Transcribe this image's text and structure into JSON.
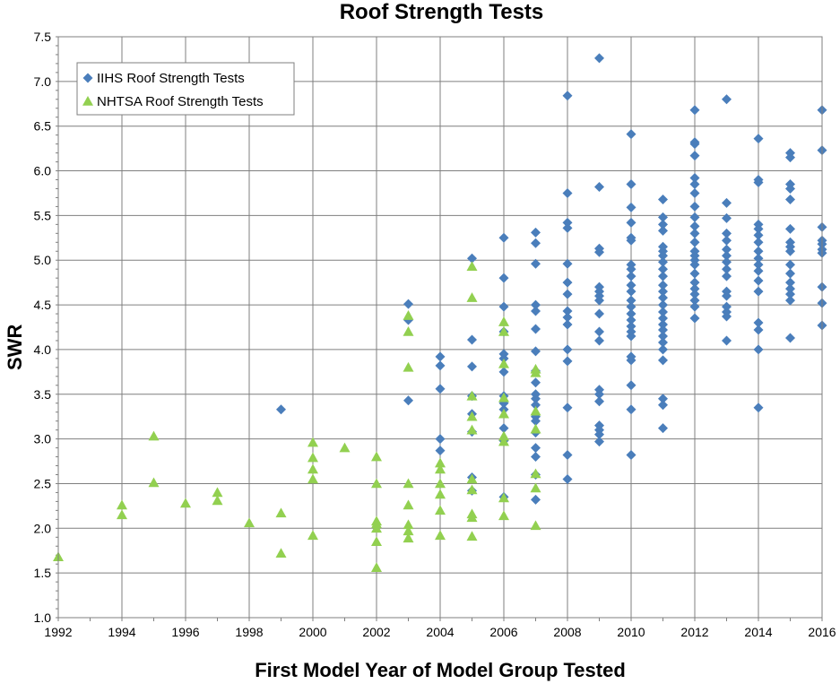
{
  "chart_data": {
    "type": "scatter",
    "title": "Roof Strength Tests",
    "xlabel": "First Model Year of Model Group Tested",
    "ylabel": "SWR",
    "xlim": [
      1992,
      2016
    ],
    "ylim": [
      1.0,
      7.5
    ],
    "xticks": [
      1992,
      1994,
      1996,
      1998,
      2000,
      2002,
      2004,
      2006,
      2008,
      2010,
      2012,
      2014,
      2016
    ],
    "xtick_labels": [
      "1992",
      "1994",
      "1996",
      "1998",
      "2000",
      "2002",
      "2004",
      "2006",
      "2008",
      "2010",
      "2012",
      "2014",
      "2016"
    ],
    "yticks": [
      1.0,
      1.5,
      2.0,
      2.5,
      3.0,
      3.5,
      4.0,
      4.5,
      5.0,
      5.5,
      6.0,
      6.5,
      7.0,
      7.5
    ],
    "ytick_labels": [
      "1.0",
      "1.5",
      "2.0",
      "2.5",
      "3.0",
      "3.5",
      "4.0",
      "4.5",
      "5.0",
      "5.5",
      "6.0",
      "6.5",
      "7.0",
      "7.5"
    ],
    "grid": true,
    "legend_position": "top-left",
    "series": [
      {
        "name": "IIHS Roof Strength Tests",
        "marker": "diamond",
        "color": "#4a7ebb",
        "points": [
          [
            1999,
            3.33
          ],
          [
            2003,
            4.51
          ],
          [
            2003,
            4.33
          ],
          [
            2003,
            3.43
          ],
          [
            2004,
            3.92
          ],
          [
            2004,
            3.82
          ],
          [
            2004,
            3.56
          ],
          [
            2004,
            3.0
          ],
          [
            2004,
            2.87
          ],
          [
            2005,
            5.02
          ],
          [
            2005,
            4.11
          ],
          [
            2005,
            3.81
          ],
          [
            2005,
            3.48
          ],
          [
            2005,
            3.28
          ],
          [
            2005,
            3.08
          ],
          [
            2005,
            2.57
          ],
          [
            2005,
            2.42
          ],
          [
            2006,
            5.25
          ],
          [
            2006,
            4.8
          ],
          [
            2006,
            4.48
          ],
          [
            2006,
            4.2
          ],
          [
            2006,
            3.95
          ],
          [
            2006,
            3.9
          ],
          [
            2006,
            3.75
          ],
          [
            2006,
            3.48
          ],
          [
            2006,
            3.4
          ],
          [
            2006,
            3.33
          ],
          [
            2006,
            3.12
          ],
          [
            2006,
            2.98
          ],
          [
            2006,
            2.35
          ],
          [
            2007,
            5.31
          ],
          [
            2007,
            5.19
          ],
          [
            2007,
            4.96
          ],
          [
            2007,
            4.5
          ],
          [
            2007,
            4.43
          ],
          [
            2007,
            4.23
          ],
          [
            2007,
            3.98
          ],
          [
            2007,
            3.76
          ],
          [
            2007,
            3.63
          ],
          [
            2007,
            3.5
          ],
          [
            2007,
            3.45
          ],
          [
            2007,
            3.38
          ],
          [
            2007,
            3.25
          ],
          [
            2007,
            3.2
          ],
          [
            2007,
            3.07
          ],
          [
            2007,
            2.9
          ],
          [
            2007,
            2.8
          ],
          [
            2007,
            2.6
          ],
          [
            2007,
            2.32
          ],
          [
            2008,
            6.84
          ],
          [
            2008,
            5.75
          ],
          [
            2008,
            5.42
          ],
          [
            2008,
            5.36
          ],
          [
            2008,
            4.96
          ],
          [
            2008,
            4.75
          ],
          [
            2008,
            4.62
          ],
          [
            2008,
            4.43
          ],
          [
            2008,
            4.36
          ],
          [
            2008,
            4.28
          ],
          [
            2008,
            4.0
          ],
          [
            2008,
            3.87
          ],
          [
            2008,
            3.35
          ],
          [
            2008,
            2.82
          ],
          [
            2008,
            2.55
          ],
          [
            2009,
            7.26
          ],
          [
            2009,
            5.82
          ],
          [
            2009,
            5.13
          ],
          [
            2009,
            5.09
          ],
          [
            2009,
            4.7
          ],
          [
            2009,
            4.65
          ],
          [
            2009,
            4.6
          ],
          [
            2009,
            4.55
          ],
          [
            2009,
            4.4
          ],
          [
            2009,
            4.2
          ],
          [
            2009,
            4.1
          ],
          [
            2009,
            3.55
          ],
          [
            2009,
            3.5
          ],
          [
            2009,
            3.42
          ],
          [
            2009,
            3.15
          ],
          [
            2009,
            3.1
          ],
          [
            2009,
            3.05
          ],
          [
            2009,
            2.97
          ],
          [
            2010,
            6.41
          ],
          [
            2010,
            5.85
          ],
          [
            2010,
            5.59
          ],
          [
            2010,
            5.42
          ],
          [
            2010,
            5.25
          ],
          [
            2010,
            5.22
          ],
          [
            2010,
            4.95
          ],
          [
            2010,
            4.9
          ],
          [
            2010,
            4.82
          ],
          [
            2010,
            4.72
          ],
          [
            2010,
            4.65
          ],
          [
            2010,
            4.55
          ],
          [
            2010,
            4.48
          ],
          [
            2010,
            4.4
          ],
          [
            2010,
            4.33
          ],
          [
            2010,
            4.26
          ],
          [
            2010,
            4.2
          ],
          [
            2010,
            4.15
          ],
          [
            2010,
            3.92
          ],
          [
            2010,
            3.88
          ],
          [
            2010,
            3.6
          ],
          [
            2010,
            3.33
          ],
          [
            2010,
            2.82
          ],
          [
            2011,
            5.68
          ],
          [
            2011,
            5.48
          ],
          [
            2011,
            5.4
          ],
          [
            2011,
            5.33
          ],
          [
            2011,
            5.15
          ],
          [
            2011,
            5.1
          ],
          [
            2011,
            5.05
          ],
          [
            2011,
            4.98
          ],
          [
            2011,
            4.9
          ],
          [
            2011,
            4.82
          ],
          [
            2011,
            4.72
          ],
          [
            2011,
            4.65
          ],
          [
            2011,
            4.58
          ],
          [
            2011,
            4.5
          ],
          [
            2011,
            4.42
          ],
          [
            2011,
            4.35
          ],
          [
            2011,
            4.28
          ],
          [
            2011,
            4.22
          ],
          [
            2011,
            4.15
          ],
          [
            2011,
            4.08
          ],
          [
            2011,
            4.0
          ],
          [
            2011,
            3.88
          ],
          [
            2011,
            3.45
          ],
          [
            2011,
            3.38
          ],
          [
            2011,
            3.12
          ],
          [
            2012,
            6.68
          ],
          [
            2012,
            6.32
          ],
          [
            2012,
            6.3
          ],
          [
            2012,
            6.17
          ],
          [
            2012,
            5.92
          ],
          [
            2012,
            5.85
          ],
          [
            2012,
            5.75
          ],
          [
            2012,
            5.6
          ],
          [
            2012,
            5.48
          ],
          [
            2012,
            5.38
          ],
          [
            2012,
            5.3
          ],
          [
            2012,
            5.2
          ],
          [
            2012,
            5.1
          ],
          [
            2012,
            5.05
          ],
          [
            2012,
            5.0
          ],
          [
            2012,
            4.95
          ],
          [
            2012,
            4.85
          ],
          [
            2012,
            4.75
          ],
          [
            2012,
            4.68
          ],
          [
            2012,
            4.62
          ],
          [
            2012,
            4.55
          ],
          [
            2012,
            4.48
          ],
          [
            2012,
            4.35
          ],
          [
            2013,
            6.8
          ],
          [
            2013,
            5.64
          ],
          [
            2013,
            5.47
          ],
          [
            2013,
            5.3
          ],
          [
            2013,
            5.22
          ],
          [
            2013,
            5.12
          ],
          [
            2013,
            5.05
          ],
          [
            2013,
            4.98
          ],
          [
            2013,
            4.9
          ],
          [
            2013,
            4.82
          ],
          [
            2013,
            4.65
          ],
          [
            2013,
            4.6
          ],
          [
            2013,
            4.48
          ],
          [
            2013,
            4.42
          ],
          [
            2013,
            4.37
          ],
          [
            2013,
            4.1
          ],
          [
            2014,
            6.36
          ],
          [
            2014,
            5.9
          ],
          [
            2014,
            5.87
          ],
          [
            2014,
            5.4
          ],
          [
            2014,
            5.35
          ],
          [
            2014,
            5.28
          ],
          [
            2014,
            5.2
          ],
          [
            2014,
            5.1
          ],
          [
            2014,
            5.02
          ],
          [
            2014,
            4.95
          ],
          [
            2014,
            4.88
          ],
          [
            2014,
            4.77
          ],
          [
            2014,
            4.65
          ],
          [
            2014,
            4.3
          ],
          [
            2014,
            4.22
          ],
          [
            2014,
            4.0
          ],
          [
            2014,
            3.35
          ],
          [
            2015,
            6.2
          ],
          [
            2015,
            6.15
          ],
          [
            2015,
            5.85
          ],
          [
            2015,
            5.8
          ],
          [
            2015,
            5.68
          ],
          [
            2015,
            5.35
          ],
          [
            2015,
            5.2
          ],
          [
            2015,
            5.15
          ],
          [
            2015,
            5.1
          ],
          [
            2015,
            4.95
          ],
          [
            2015,
            4.85
          ],
          [
            2015,
            4.75
          ],
          [
            2015,
            4.68
          ],
          [
            2015,
            4.62
          ],
          [
            2015,
            4.55
          ],
          [
            2015,
            4.13
          ],
          [
            2016,
            6.68
          ],
          [
            2016,
            6.23
          ],
          [
            2016,
            5.37
          ],
          [
            2016,
            5.22
          ],
          [
            2016,
            5.18
          ],
          [
            2016,
            5.12
          ],
          [
            2016,
            5.08
          ],
          [
            2016,
            4.7
          ],
          [
            2016,
            4.52
          ],
          [
            2016,
            4.27
          ]
        ]
      },
      {
        "name": "NHTSA Roof Strength Tests",
        "marker": "triangle",
        "color": "#92d050",
        "points": [
          [
            1992,
            1.68
          ],
          [
            1994,
            2.26
          ],
          [
            1994,
            2.15
          ],
          [
            1995,
            3.03
          ],
          [
            1995,
            2.51
          ],
          [
            1996,
            2.28
          ],
          [
            1997,
            2.4
          ],
          [
            1997,
            2.31
          ],
          [
            1998,
            2.06
          ],
          [
            1999,
            2.17
          ],
          [
            1999,
            1.72
          ],
          [
            2000,
            2.96
          ],
          [
            2000,
            2.79
          ],
          [
            2000,
            2.66
          ],
          [
            2000,
            2.55
          ],
          [
            2000,
            1.92
          ],
          [
            2001,
            2.9
          ],
          [
            2002,
            2.8
          ],
          [
            2002,
            2.5
          ],
          [
            2002,
            2.08
          ],
          [
            2002,
            2.05
          ],
          [
            2002,
            2.0
          ],
          [
            2002,
            1.85
          ],
          [
            2002,
            1.56
          ],
          [
            2003,
            4.38
          ],
          [
            2003,
            4.2
          ],
          [
            2003,
            3.8
          ],
          [
            2003,
            2.5
          ],
          [
            2003,
            2.26
          ],
          [
            2003,
            2.04
          ],
          [
            2003,
            1.97
          ],
          [
            2003,
            1.89
          ],
          [
            2004,
            2.73
          ],
          [
            2004,
            2.66
          ],
          [
            2004,
            2.5
          ],
          [
            2004,
            2.38
          ],
          [
            2004,
            2.2
          ],
          [
            2004,
            1.92
          ],
          [
            2005,
            4.93
          ],
          [
            2005,
            4.58
          ],
          [
            2005,
            3.48
          ],
          [
            2005,
            3.25
          ],
          [
            2005,
            3.1
          ],
          [
            2005,
            2.55
          ],
          [
            2005,
            2.43
          ],
          [
            2005,
            2.16
          ],
          [
            2005,
            2.12
          ],
          [
            2005,
            1.91
          ],
          [
            2006,
            4.31
          ],
          [
            2006,
            4.2
          ],
          [
            2006,
            3.84
          ],
          [
            2006,
            3.46
          ],
          [
            2006,
            3.28
          ],
          [
            2006,
            3.03
          ],
          [
            2006,
            2.97
          ],
          [
            2006,
            2.34
          ],
          [
            2006,
            2.14
          ],
          [
            2007,
            3.78
          ],
          [
            2007,
            3.74
          ],
          [
            2007,
            3.31
          ],
          [
            2007,
            3.11
          ],
          [
            2007,
            2.61
          ],
          [
            2007,
            2.45
          ],
          [
            2007,
            2.03
          ]
        ]
      }
    ]
  }
}
